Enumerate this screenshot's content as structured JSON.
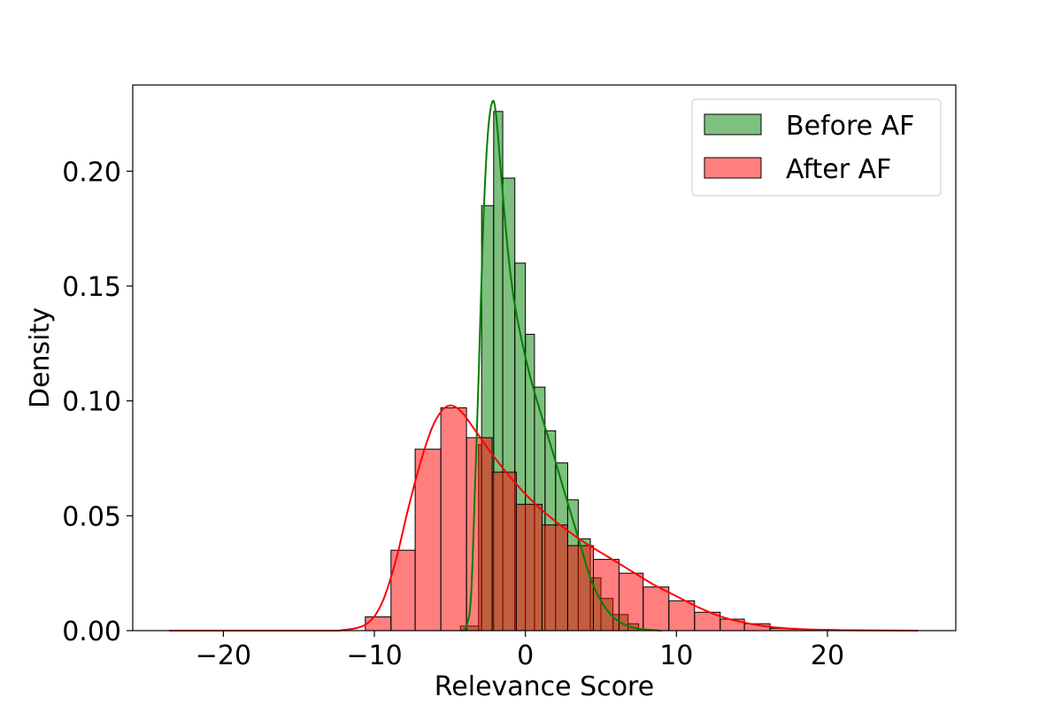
{
  "chart_data": {
    "type": "histogram",
    "xlabel": "Relevance Score",
    "ylabel": "Density",
    "xlim": [
      -26,
      28.5
    ],
    "ylim": [
      0,
      0.2375
    ],
    "x_ticks": [
      -20,
      -10,
      0,
      10,
      20
    ],
    "y_ticks": [
      0.0,
      0.05,
      0.1,
      0.15,
      0.2
    ],
    "x_tick_labels": [
      "−20",
      "−10",
      "0",
      "10",
      "20"
    ],
    "y_tick_labels": [
      "0.00",
      "0.05",
      "0.10",
      "0.15",
      "0.20"
    ],
    "legend": {
      "placement": "top-right",
      "entries": [
        "Before AF",
        "After AF"
      ]
    },
    "series": [
      {
        "name": "Before AF",
        "fill": "#008000",
        "fill_opacity": 0.5,
        "kde_color": "#008000",
        "bins": [
          {
            "x0": -4.3,
            "x1": -3.1,
            "density": 0.002
          },
          {
            "x0": -3.1,
            "x1": -2.9,
            "density": 0.081
          },
          {
            "x0": -2.9,
            "x1": -2.1,
            "density": 0.185
          },
          {
            "x0": -2.1,
            "x1": -1.5,
            "density": 0.226
          },
          {
            "x0": -1.5,
            "x1": -0.7,
            "density": 0.197
          },
          {
            "x0": -0.7,
            "x1": -0.0,
            "density": 0.16
          },
          {
            "x0": 0.0,
            "x1": 0.6,
            "density": 0.129
          },
          {
            "x0": 0.6,
            "x1": 1.3,
            "density": 0.106
          },
          {
            "x0": 1.3,
            "x1": 2.0,
            "density": 0.087
          },
          {
            "x0": 2.0,
            "x1": 2.8,
            "density": 0.073
          },
          {
            "x0": 2.8,
            "x1": 3.5,
            "density": 0.057
          },
          {
            "x0": 3.5,
            "x1": 4.3,
            "density": 0.04
          },
          {
            "x0": 4.3,
            "x1": 5.0,
            "density": 0.023
          },
          {
            "x0": 5.0,
            "x1": 5.8,
            "density": 0.014
          },
          {
            "x0": 5.8,
            "x1": 6.8,
            "density": 0.007
          },
          {
            "x0": 6.8,
            "x1": 7.5,
            "density": 0.003
          }
        ],
        "kde": [
          [
            -4.3,
            0.0
          ],
          [
            -3.9,
            0.002
          ],
          [
            -3.6,
            0.015
          ],
          [
            -3.35,
            0.06
          ],
          [
            -3.1,
            0.11
          ],
          [
            -2.8,
            0.175
          ],
          [
            -2.5,
            0.215
          ],
          [
            -2.2,
            0.23
          ],
          [
            -1.95,
            0.225
          ],
          [
            -1.6,
            0.198
          ],
          [
            -1.2,
            0.168
          ],
          [
            -0.8,
            0.146
          ],
          [
            -0.3,
            0.128
          ],
          [
            0.3,
            0.111
          ],
          [
            1.0,
            0.095
          ],
          [
            1.8,
            0.078
          ],
          [
            2.6,
            0.06
          ],
          [
            3.2,
            0.047
          ],
          [
            3.7,
            0.036
          ],
          [
            4.3,
            0.023
          ],
          [
            5.0,
            0.013
          ],
          [
            5.8,
            0.006
          ],
          [
            6.6,
            0.0025
          ],
          [
            7.5,
            0.0008
          ],
          [
            9.0,
            0.0
          ]
        ]
      },
      {
        "name": "After AF",
        "fill": "#ff0000",
        "fill_opacity": 0.5,
        "kde_color": "#ff0000",
        "bins": [
          {
            "x0": -10.6,
            "x1": -8.9,
            "density": 0.006
          },
          {
            "x0": -8.9,
            "x1": -7.3,
            "density": 0.035
          },
          {
            "x0": -7.3,
            "x1": -5.6,
            "density": 0.079
          },
          {
            "x0": -5.6,
            "x1": -3.9,
            "density": 0.097
          },
          {
            "x0": -3.9,
            "x1": -2.2,
            "density": 0.084
          },
          {
            "x0": -2.2,
            "x1": -0.6,
            "density": 0.069
          },
          {
            "x0": -0.6,
            "x1": 1.1,
            "density": 0.055
          },
          {
            "x0": 1.1,
            "x1": 2.8,
            "density": 0.046
          },
          {
            "x0": 2.8,
            "x1": 4.5,
            "density": 0.037
          },
          {
            "x0": 4.5,
            "x1": 6.2,
            "density": 0.031
          },
          {
            "x0": 6.2,
            "x1": 7.8,
            "density": 0.025
          },
          {
            "x0": 7.8,
            "x1": 9.5,
            "density": 0.019
          },
          {
            "x0": 9.5,
            "x1": 11.2,
            "density": 0.013
          },
          {
            "x0": 11.2,
            "x1": 12.9,
            "density": 0.008
          },
          {
            "x0": 12.9,
            "x1": 14.5,
            "density": 0.005
          },
          {
            "x0": 14.5,
            "x1": 16.2,
            "density": 0.003
          },
          {
            "x0": 16.2,
            "x1": 17.9,
            "density": 0.001
          }
        ],
        "kde": [
          [
            -23.6,
            0.0
          ],
          [
            -14.0,
            0.0
          ],
          [
            -12.0,
            0.0003
          ],
          [
            -10.5,
            0.003
          ],
          [
            -9.5,
            0.012
          ],
          [
            -8.6,
            0.03
          ],
          [
            -7.8,
            0.052
          ],
          [
            -7.0,
            0.072
          ],
          [
            -6.2,
            0.088
          ],
          [
            -5.5,
            0.096
          ],
          [
            -4.9,
            0.098
          ],
          [
            -4.2,
            0.095
          ],
          [
            -3.2,
            0.086
          ],
          [
            -2.0,
            0.075
          ],
          [
            -0.5,
            0.063
          ],
          [
            1.0,
            0.053
          ],
          [
            2.5,
            0.045
          ],
          [
            4.0,
            0.038
          ],
          [
            5.5,
            0.032
          ],
          [
            7.0,
            0.026
          ],
          [
            8.5,
            0.02
          ],
          [
            10.0,
            0.015
          ],
          [
            11.5,
            0.01
          ],
          [
            13.0,
            0.006
          ],
          [
            14.5,
            0.0035
          ],
          [
            16.0,
            0.0018
          ],
          [
            18.0,
            0.0007
          ],
          [
            21.0,
            0.0002
          ],
          [
            26.0,
            0.0
          ]
        ]
      }
    ]
  }
}
